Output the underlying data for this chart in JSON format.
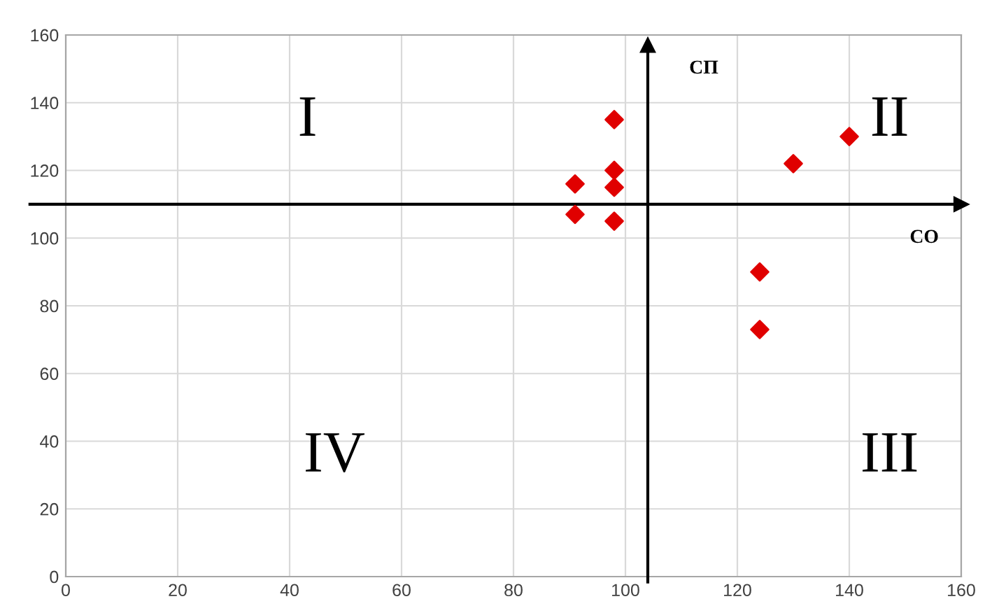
{
  "chart_data": {
    "type": "scatter",
    "x": [
      98,
      91,
      98,
      98,
      91,
      98,
      130,
      140,
      124,
      124
    ],
    "series": [
      {
        "color": "#e00000",
        "values": [
          135,
          116,
          120,
          115,
          107,
          105,
          122,
          130,
          90,
          73
        ]
      }
    ],
    "xlim": [
      0,
      160
    ],
    "ylim": [
      0,
      160
    ],
    "xticks": [
      0,
      20,
      40,
      60,
      80,
      100,
      120,
      140,
      160
    ],
    "yticks": [
      0,
      20,
      40,
      60,
      80,
      100,
      120,
      140,
      160
    ],
    "grid": true,
    "marker": "diamond",
    "ref_lines": [
      {
        "axis": "y",
        "value": 110,
        "label": "СО",
        "color": "#000000"
      },
      {
        "axis": "x",
        "value": 104,
        "label": "СП",
        "color": "#000000"
      }
    ],
    "annotations": [
      "I",
      "II",
      "III",
      "IV"
    ]
  }
}
